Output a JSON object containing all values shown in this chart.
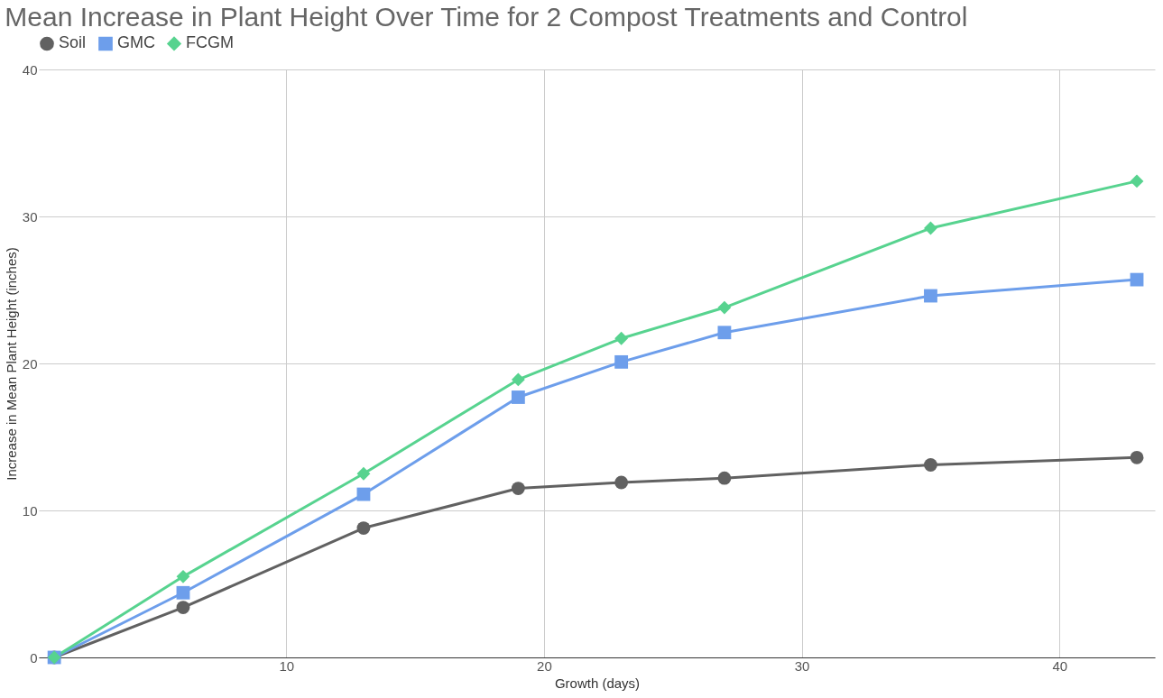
{
  "chart_data": {
    "type": "line",
    "title": "Mean Increase in Plant Height Over Time for 2 Compost Treatments and Control",
    "xlabel": "Growth (days)",
    "ylabel": "Increase in Mean Plant Height (inches)",
    "x": [
      1,
      6,
      13,
      19,
      23,
      27,
      35,
      43
    ],
    "series": [
      {
        "name": "Soil",
        "color": "#616161",
        "marker": "circle",
        "values": [
          0,
          3.4,
          8.8,
          11.5,
          11.9,
          12.2,
          13.1,
          13.6
        ]
      },
      {
        "name": "GMC",
        "color": "#6d9eeb",
        "marker": "square",
        "values": [
          0,
          4.4,
          11.1,
          17.7,
          20.1,
          22.1,
          24.6,
          25.7
        ]
      },
      {
        "name": "FCGM",
        "color": "#57d38f",
        "marker": "diamond",
        "values": [
          0,
          5.5,
          12.5,
          18.9,
          21.7,
          23.8,
          29.2,
          32.4
        ]
      }
    ],
    "xlim": [
      0.4,
      43.7
    ],
    "xticks": [
      10,
      20,
      30,
      40
    ],
    "ylim": [
      0,
      40
    ],
    "yticks": [
      0,
      10,
      20,
      30,
      40
    ],
    "grid": true,
    "legend": "top",
    "line_style": "solid"
  }
}
